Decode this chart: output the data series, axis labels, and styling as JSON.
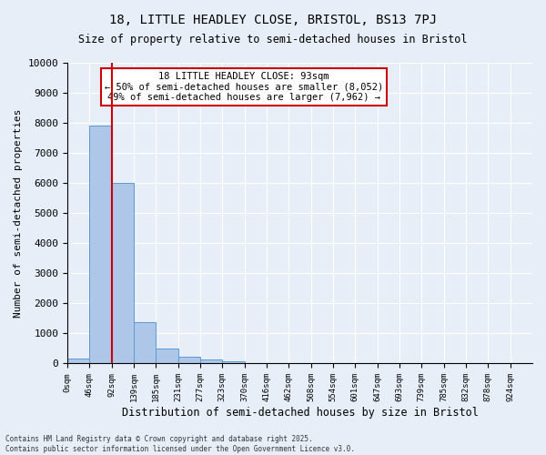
{
  "title1": "18, LITTLE HEADLEY CLOSE, BRISTOL, BS13 7PJ",
  "title2": "Size of property relative to semi-detached houses in Bristol",
  "xlabel": "Distribution of semi-detached houses by size in Bristol",
  "ylabel": "Number of semi-detached properties",
  "bin_labels": [
    "0sqm",
    "46sqm",
    "92sqm",
    "139sqm",
    "185sqm",
    "231sqm",
    "277sqm",
    "323sqm",
    "370sqm",
    "416sqm",
    "462sqm",
    "508sqm",
    "554sqm",
    "601sqm",
    "647sqm",
    "693sqm",
    "739sqm",
    "785sqm",
    "832sqm",
    "878sqm",
    "924sqm"
  ],
  "bar_values": [
    170,
    7900,
    6000,
    1380,
    490,
    230,
    150,
    80,
    0,
    0,
    0,
    0,
    0,
    0,
    0,
    0,
    0,
    0,
    0,
    0,
    0
  ],
  "bar_color": "#aec6e8",
  "bar_edge_color": "#5b9bd5",
  "vline_x": 2,
  "vline_color": "#cc0000",
  "ylim": [
    0,
    10000
  ],
  "yticks": [
    0,
    1000,
    2000,
    3000,
    4000,
    5000,
    6000,
    7000,
    8000,
    9000,
    10000
  ],
  "annotation_title": "18 LITTLE HEADLEY CLOSE: 93sqm",
  "annotation_line1": "← 50% of semi-detached houses are smaller (8,052)",
  "annotation_line2": "49% of semi-detached houses are larger (7,962) →",
  "annotation_box_color": "#ffffff",
  "annotation_box_edge": "#cc0000",
  "footer1": "Contains HM Land Registry data © Crown copyright and database right 2025.",
  "footer2": "Contains public sector information licensed under the Open Government Licence v3.0.",
  "bg_color": "#e8eef7",
  "plot_bg_color": "#e8eef7"
}
